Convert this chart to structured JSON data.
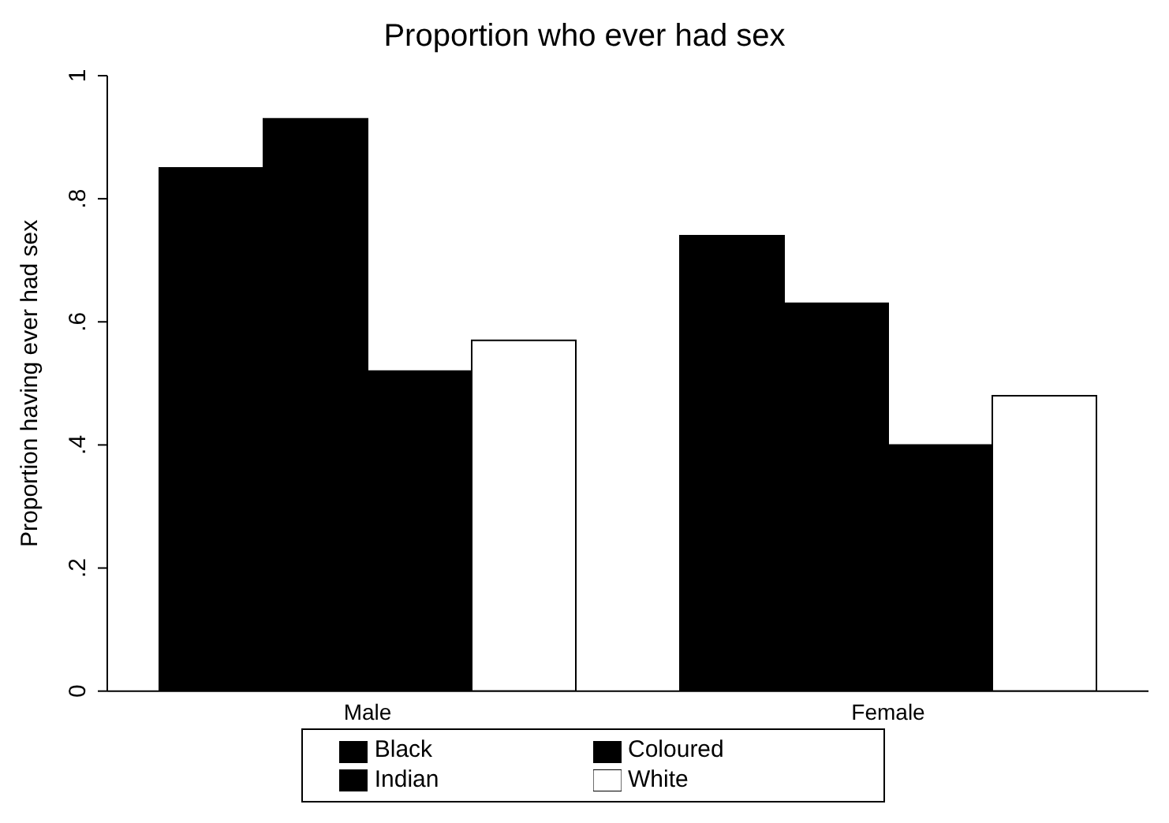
{
  "chart_data": {
    "type": "bar",
    "title": "Proportion who ever had sex",
    "ylabel": "Proportion having ever had sex",
    "categories": [
      "Male",
      "Female"
    ],
    "series": [
      {
        "name": "Black",
        "color": "#000000",
        "values": [
          0.85,
          0.74
        ]
      },
      {
        "name": "Coloured",
        "color": "#000000",
        "values": [
          0.93,
          0.63
        ]
      },
      {
        "name": "Indian",
        "color": "#000000",
        "values": [
          0.52,
          0.4
        ]
      },
      {
        "name": "White",
        "color": "#ffffff",
        "values": [
          0.57,
          0.48
        ]
      }
    ],
    "ylim": [
      0,
      1
    ],
    "yticks": [
      {
        "value": 0,
        "label": "0"
      },
      {
        "value": 0.2,
        "label": ".2"
      },
      {
        "value": 0.4,
        "label": ".4"
      },
      {
        "value": 0.6,
        "label": ".6"
      },
      {
        "value": 0.8,
        "label": ".8"
      },
      {
        "value": 1,
        "label": "1"
      }
    ],
    "grid": false,
    "legend": "bottom"
  }
}
